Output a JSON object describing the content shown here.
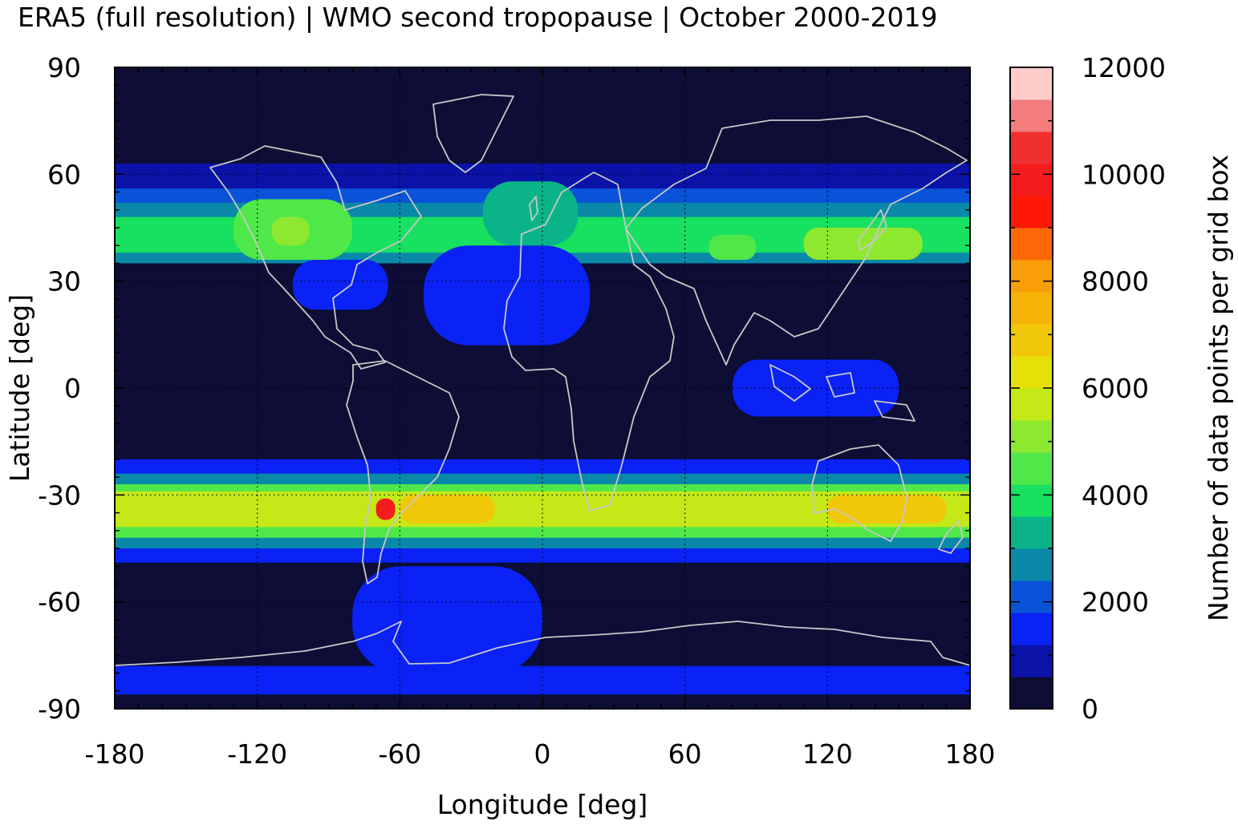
{
  "chart_data": {
    "type": "heatmap",
    "title": "ERA5 (full resolution) | WMO second tropopause | October 2000-2019",
    "xlabel": "Longitude [deg]",
    "ylabel": "Latitude [deg]",
    "colorbar_label": "Number of data points per grid box",
    "xlim": [
      -180,
      180
    ],
    "ylim": [
      -90,
      90
    ],
    "x_ticks": [
      -180,
      -120,
      -60,
      0,
      60,
      120,
      180
    ],
    "y_ticks": [
      90,
      60,
      30,
      0,
      -30,
      -60,
      -90
    ],
    "colorbar_range": [
      0,
      12000
    ],
    "colorbar_ticks": [
      12000,
      10000,
      8000,
      6000,
      4000,
      2000,
      0
    ],
    "colorbar_levels": [
      {
        "from": 0,
        "to": 600,
        "color": "#0d0d35"
      },
      {
        "from": 600,
        "to": 1200,
        "color": "#0a12a8"
      },
      {
        "from": 1200,
        "to": 1800,
        "color": "#0a22f5"
      },
      {
        "from": 1800,
        "to": 2400,
        "color": "#0a52d8"
      },
      {
        "from": 2400,
        "to": 3000,
        "color": "#0a88a8"
      },
      {
        "from": 3000,
        "to": 3600,
        "color": "#0ab488"
      },
      {
        "from": 3600,
        "to": 4200,
        "color": "#18e060"
      },
      {
        "from": 4200,
        "to": 4800,
        "color": "#50e848"
      },
      {
        "from": 4800,
        "to": 5400,
        "color": "#8ee830"
      },
      {
        "from": 5400,
        "to": 6000,
        "color": "#c4e818"
      },
      {
        "from": 6000,
        "to": 6600,
        "color": "#e6e008"
      },
      {
        "from": 6600,
        "to": 7200,
        "color": "#f0c808"
      },
      {
        "from": 7200,
        "to": 7800,
        "color": "#f6b406"
      },
      {
        "from": 7800,
        "to": 8400,
        "color": "#f89e06"
      },
      {
        "from": 8400,
        "to": 9000,
        "color": "#fc6808"
      },
      {
        "from": 9000,
        "to": 9600,
        "color": "#ff1808"
      },
      {
        "from": 9600,
        "to": 10200,
        "color": "#f41c1c"
      },
      {
        "from": 10200,
        "to": 10800,
        "color": "#f03030"
      },
      {
        "from": 10800,
        "to": 11400,
        "color": "#f47c7c"
      },
      {
        "from": 11400,
        "to": 12000,
        "color": "#ffcccc"
      }
    ],
    "regions": [
      {
        "lon": [
          -180,
          180
        ],
        "lat": [
          52,
          63
        ],
        "value": 1000
      },
      {
        "lon": [
          -180,
          180
        ],
        "lat": [
          46,
          56
        ],
        "value": 1800
      },
      {
        "lon": [
          -180,
          180
        ],
        "lat": [
          35,
          52
        ],
        "value": 2700
      },
      {
        "lon": [
          -180,
          180
        ],
        "lat": [
          38,
          48
        ],
        "value": 3600
      },
      {
        "lon": [
          -130,
          -80
        ],
        "lat": [
          36,
          53
        ],
        "value": 4300
      },
      {
        "lon": [
          -114,
          -98
        ],
        "lat": [
          40,
          48
        ],
        "value": 5000
      },
      {
        "lon": [
          70,
          90
        ],
        "lat": [
          36,
          43
        ],
        "value": 4300
      },
      {
        "lon": [
          110,
          160
        ],
        "lat": [
          36,
          45
        ],
        "value": 4800
      },
      {
        "lon": [
          -25,
          15
        ],
        "lat": [
          40,
          58
        ],
        "value": 3000
      },
      {
        "lon": [
          -50,
          20
        ],
        "lat": [
          12,
          40
        ],
        "value": 1500
      },
      {
        "lon": [
          -105,
          -65
        ],
        "lat": [
          22,
          36
        ],
        "value": 1500
      },
      {
        "lon": [
          80,
          150
        ],
        "lat": [
          -8,
          8
        ],
        "value": 1500
      },
      {
        "lon": [
          -180,
          180
        ],
        "lat": [
          -49,
          -20
        ],
        "value": 1500
      },
      {
        "lon": [
          -180,
          180
        ],
        "lat": [
          -45,
          -24
        ],
        "value": 2800
      },
      {
        "lon": [
          -180,
          180
        ],
        "lat": [
          -42,
          -27
        ],
        "value": 4200
      },
      {
        "lon": [
          -180,
          180
        ],
        "lat": [
          -39,
          -29
        ],
        "value": 5400
      },
      {
        "lon": [
          -60,
          -20
        ],
        "lat": [
          -38,
          -30
        ],
        "value": 7000
      },
      {
        "lon": [
          120,
          170
        ],
        "lat": [
          -38,
          -30
        ],
        "value": 6600
      },
      {
        "lon": [
          -70,
          -62
        ],
        "lat": [
          -37,
          -31
        ],
        "value": 10000
      },
      {
        "lon": [
          -80,
          0
        ],
        "lat": [
          -80,
          -50
        ],
        "value": 1500
      },
      {
        "lon": [
          -180,
          180
        ],
        "lat": [
          -86,
          -78
        ],
        "value": 1200
      }
    ]
  }
}
